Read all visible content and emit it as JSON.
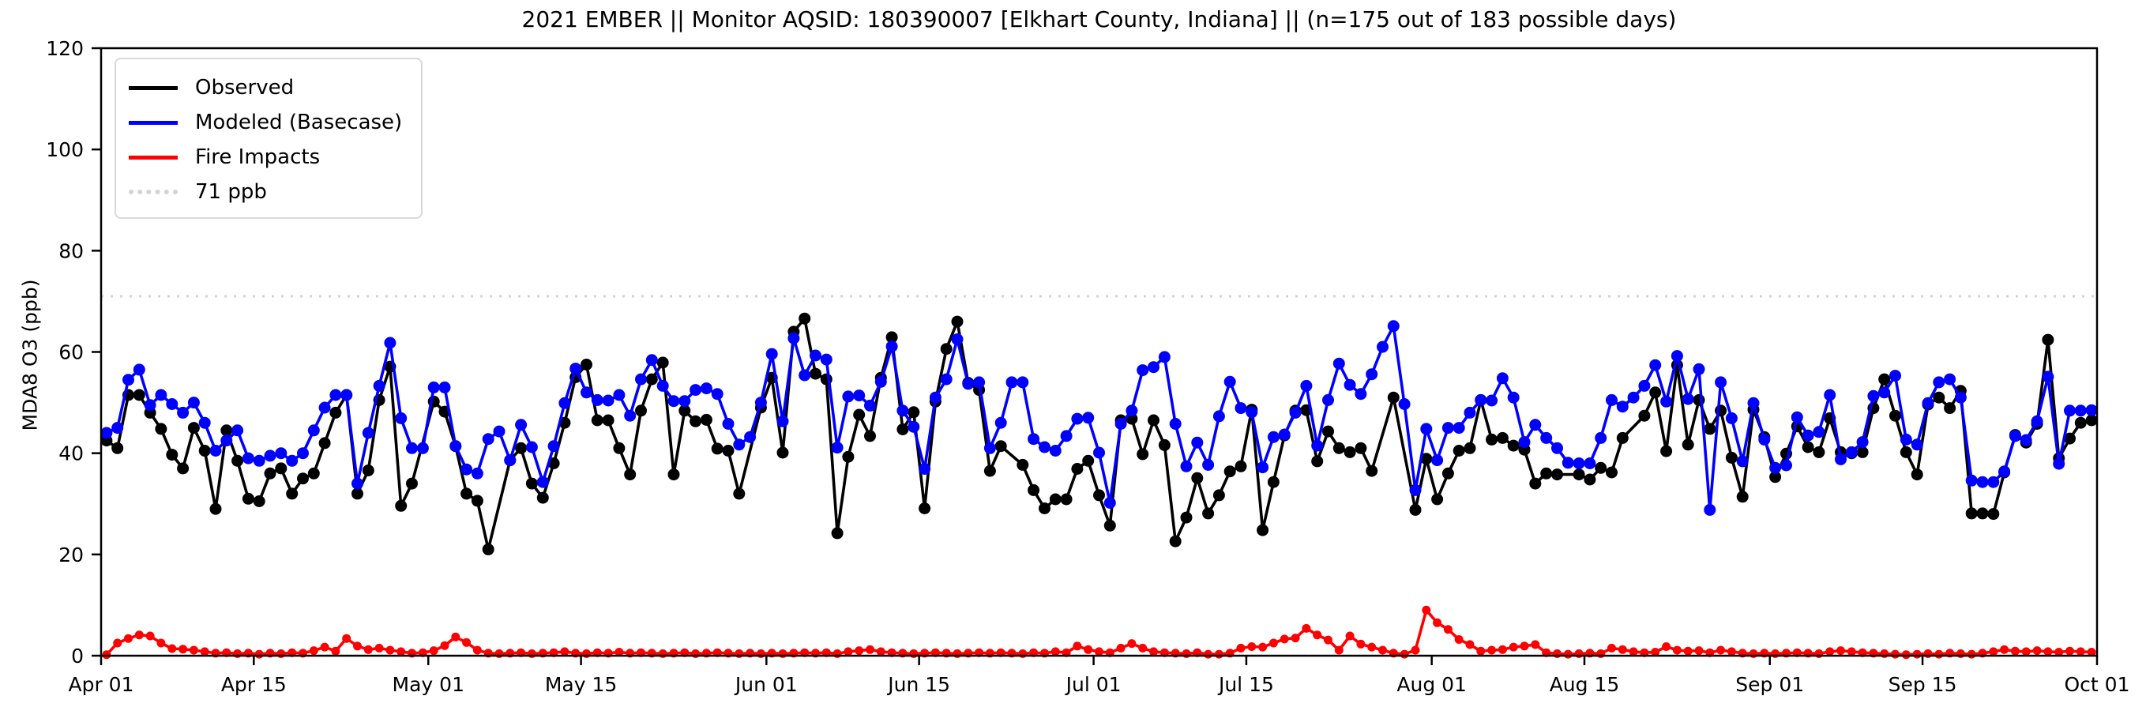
{
  "title": "2021 EMBER || Monitor AQSID: 180390007 [Elkhart County, Indiana] || (n=175 out of 183 possible days)",
  "ylabel": "MDA8 O3 (ppb)",
  "legend": {
    "observed_label": "Observed",
    "modeled_label": "Modeled (Basecase)",
    "fire_label": "Fire Impacts",
    "threshold_label": "71 ppb"
  },
  "colors": {
    "observed": "#000000",
    "modeled": "#0000ff",
    "fire": "#ff0000",
    "threshold": "#d3d3d3",
    "axis": "#000000"
  },
  "chart_data": {
    "type": "line",
    "title": "2021 EMBER || Monitor AQSID: 180390007 [Elkhart County, Indiana] || (n=175 out of 183 possible days)",
    "xlabel": "",
    "ylabel": "MDA8 O3 (ppb)",
    "ylim": [
      0,
      120
    ],
    "yticks": [
      0,
      20,
      40,
      60,
      80,
      100,
      120
    ],
    "x_start_day": 0,
    "x_end_day": 183,
    "x_ticks": [
      {
        "label": "Apr 01",
        "day": 0
      },
      {
        "label": "Apr 15",
        "day": 14
      },
      {
        "label": "May 01",
        "day": 30
      },
      {
        "label": "May 15",
        "day": 44
      },
      {
        "label": "Jun 01",
        "day": 61
      },
      {
        "label": "Jun 15",
        "day": 75
      },
      {
        "label": "Jul 01",
        "day": 91
      },
      {
        "label": "Jul 15",
        "day": 105
      },
      {
        "label": "Aug 01",
        "day": 122
      },
      {
        "label": "Aug 15",
        "day": 136
      },
      {
        "label": "Sep 01",
        "day": 153
      },
      {
        "label": "Sep 15",
        "day": 167
      },
      {
        "label": "Oct 01",
        "day": 183
      }
    ],
    "threshold_ppb": 71,
    "legend_position": "upper left",
    "grid": false,
    "series": [
      {
        "name": "Observed",
        "color": "#000000",
        "marker": "circle",
        "values": [
          42.5,
          41,
          51.5,
          51.5,
          48,
          44.8,
          39.7,
          37,
          45,
          40.5,
          29,
          44.5,
          38.5,
          31,
          30.5,
          36,
          37,
          32,
          35,
          36,
          42,
          48,
          51.5,
          32,
          36.6,
          50.5,
          57.1,
          29.6,
          34,
          null,
          50.2,
          48.2,
          41.4,
          32,
          30.6,
          21,
          null,
          38.6,
          41,
          34,
          31.2,
          38,
          46,
          55,
          57.5,
          46.5,
          46.5,
          41,
          35.8,
          48.4,
          54.6,
          57.9,
          35.8,
          48.4,
          46.3,
          46.6,
          40.9,
          40.5,
          32,
          null,
          49,
          54.9,
          40.1,
          64,
          66.6,
          55.7,
          54.6,
          24.2,
          39.3,
          47.6,
          43.4,
          54.9,
          62.9,
          44.7,
          48.1,
          29.1,
          50.2,
          60.6,
          66,
          53.9,
          52.5,
          36.5,
          41.4,
          null,
          37.7,
          32.7,
          29.1,
          30.9,
          30.9,
          36.9,
          38.5,
          31.7,
          25.7,
          46.5,
          46.8,
          39.8,
          46.5,
          41.6,
          22.6,
          27.3,
          35.1,
          28.1,
          31.7,
          36.4,
          37.4,
          48.6,
          24.8,
          34.3,
          43.5,
          48.4,
          48.5,
          38.4,
          44.3,
          41,
          40.2,
          41,
          36.5,
          null,
          51,
          null,
          28.8,
          38.9,
          30.9,
          36,
          40.5,
          41,
          50.5,
          42.7,
          43,
          41.5,
          40.7,
          34,
          36,
          35.8,
          null,
          35.8,
          34.8,
          37.1,
          36.2,
          43,
          null,
          47.4,
          52,
          40.4,
          57.4,
          41.7,
          50.5,
          44.8,
          48.4,
          39.1,
          31.4,
          48.6,
          43.2,
          35.3,
          39.9,
          45.3,
          41.2,
          40.2,
          46.9,
          40.2,
          40,
          40.2,
          48.9,
          54.6,
          47.4,
          40.2,
          35.8,
          49.6,
          51,
          48.9,
          52.3,
          28.1,
          28.1,
          28,
          36.2,
          43.6,
          42.1,
          45.8,
          62.4,
          39,
          42.9,
          46,
          46.5
        ]
      },
      {
        "name": "Modeled (Basecase)",
        "color": "#0000ff",
        "marker": "circle",
        "values": [
          44,
          45,
          54.5,
          56.5,
          49.5,
          51.5,
          49.7,
          48,
          50,
          46,
          40.5,
          42.5,
          44.5,
          39,
          38.5,
          39.5,
          40,
          38.5,
          40,
          44.5,
          49,
          51.5,
          51.5,
          34,
          44,
          53.3,
          61.8,
          46.9,
          41,
          41,
          53,
          53,
          41.4,
          36.8,
          36,
          42.8,
          44.3,
          38.6,
          45.6,
          41.2,
          34.3,
          41.4,
          49.9,
          56.7,
          52,
          50.5,
          50.4,
          51.5,
          47.4,
          54.6,
          58.4,
          53.3,
          50.3,
          50.3,
          52.5,
          52.8,
          51.7,
          45.8,
          41.7,
          43.2,
          50,
          59.6,
          46.3,
          62.7,
          55.4,
          59.3,
          58.5,
          41.1,
          51.2,
          51.4,
          49.4,
          54.1,
          61.1,
          48.4,
          45.2,
          36.9,
          51,
          54.6,
          62.5,
          53.7,
          54,
          41,
          46,
          54,
          54,
          42.8,
          41.2,
          40.5,
          43.4,
          46.8,
          47,
          40.1,
          30.2,
          45.8,
          48.4,
          56.4,
          57,
          59,
          45.8,
          37.4,
          42.1,
          37.7,
          47.3,
          54.1,
          48.9,
          48.1,
          37.2,
          43.2,
          43.7,
          48,
          53.3,
          41.5,
          50.5,
          57.7,
          53.5,
          51.7,
          55.6,
          61,
          65.1,
          49.7,
          32.7,
          44.8,
          38.6,
          45,
          45,
          48,
          50.5,
          50.4,
          54.8,
          51,
          42.2,
          45.6,
          43,
          41,
          38.1,
          38,
          38,
          43,
          50.5,
          49.2,
          51,
          53.3,
          57.4,
          50.2,
          59.2,
          50.7,
          56.6,
          28.8,
          54,
          46.9,
          38.4,
          49.9,
          42.7,
          37.1,
          37.6,
          47.1,
          43.5,
          44.2,
          51.5,
          38.8,
          40.2,
          42.2,
          51.3,
          52,
          55.3,
          42.7,
          41.7,
          49.9,
          54,
          54.6,
          51,
          34.6,
          34.3,
          34.3,
          36.4,
          43.4,
          42.6,
          46.3,
          55.1,
          37.9,
          48.4,
          48.4,
          48.5
        ]
      },
      {
        "name": "Fire Impacts",
        "color": "#ff0000",
        "marker": "circle",
        "values": [
          0.2,
          2.5,
          3.4,
          4.1,
          3.9,
          2.5,
          1.4,
          1.3,
          1.1,
          0.8,
          0.5,
          0.6,
          0.4,
          0.5,
          0.3,
          0.5,
          0.4,
          0.6,
          0.5,
          1.0,
          1.7,
          0.9,
          3.4,
          1.9,
          1.2,
          1.5,
          1.1,
          0.8,
          0.5,
          0.6,
          1.0,
          2.0,
          3.7,
          2.6,
          1.1,
          0.5,
          0.4,
          0.5,
          0.6,
          0.4,
          0.5,
          0.6,
          0.8,
          0.5,
          0.4,
          0.6,
          0.5,
          0.7,
          0.5,
          0.6,
          0.5,
          0.4,
          0.5,
          0.6,
          0.4,
          0.5,
          0.6,
          0.5,
          0.4,
          0.5,
          0.4,
          0.5,
          0.4,
          0.5,
          0.6,
          0.5,
          0.6,
          0.4,
          0.8,
          1.0,
          1.2,
          0.8,
          0.6,
          0.5,
          0.4,
          0.5,
          0.6,
          0.5,
          0.4,
          0.5,
          0.6,
          0.5,
          0.6,
          0.5,
          0.4,
          0.6,
          0.5,
          0.8,
          0.6,
          1.9,
          1.2,
          0.8,
          0.6,
          1.5,
          2.4,
          1.5,
          0.8,
          0.6,
          0.5,
          0.4,
          0.6,
          0.3,
          0.3,
          0.5,
          1.5,
          1.8,
          1.7,
          2.5,
          3.3,
          3.5,
          5.4,
          4.1,
          3.1,
          1.1,
          3.9,
          2.3,
          1.7,
          1.1,
          0.5,
          0.3,
          1.1,
          9.0,
          6.5,
          5.2,
          3.2,
          2.2,
          0.9,
          1.1,
          1.2,
          1.7,
          1.9,
          2.2,
          0.6,
          0.4,
          0.3,
          0.4,
          0.5,
          0.4,
          1.5,
          1.2,
          0.8,
          0.6,
          0.7,
          1.8,
          1.1,
          0.9,
          1.0,
          0.6,
          1.1,
          0.8,
          0.5,
          0.4,
          0.5,
          0.4,
          0.5,
          0.6,
          0.5,
          0.4,
          0.8,
          1.0,
          0.8,
          0.6,
          0.5,
          0.4,
          0.3,
          0.2,
          0.3,
          0.4,
          0.3,
          0.5,
          0.4,
          0.3,
          0.5,
          0.8,
          1.2,
          0.9,
          0.8,
          1.0,
          0.8,
          0.7,
          0.9,
          0.8,
          0.7
        ]
      }
    ]
  }
}
